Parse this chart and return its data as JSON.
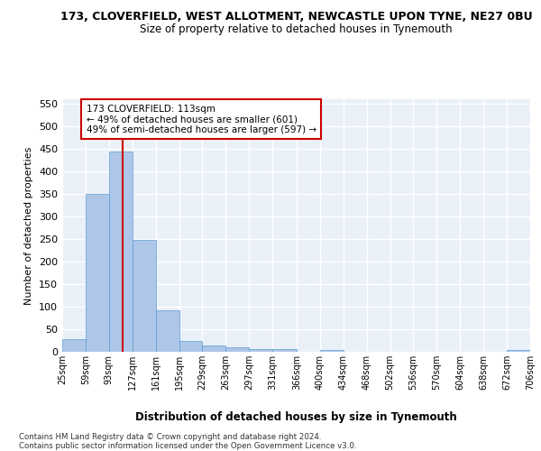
{
  "title": "173, CLOVERFIELD, WEST ALLOTMENT, NEWCASTLE UPON TYNE, NE27 0BU",
  "subtitle": "Size of property relative to detached houses in Tynemouth",
  "xlabel": "Distribution of detached houses by size in Tynemouth",
  "ylabel": "Number of detached properties",
  "bar_color": "#aec6e8",
  "bar_edge_color": "#5a9fd4",
  "bg_color": "#eaf0f8",
  "grid_color": "#ffffff",
  "vline_x": 113,
  "vline_color": "#cc0000",
  "annotation_text": "173 CLOVERFIELD: 113sqm\n← 49% of detached houses are smaller (601)\n49% of semi-detached houses are larger (597) →",
  "footer": "Contains HM Land Registry data © Crown copyright and database right 2024.\nContains public sector information licensed under the Open Government Licence v3.0.",
  "bin_edges": [
    25,
    59,
    93,
    127,
    161,
    195,
    229,
    263,
    297,
    331,
    366,
    400,
    434,
    468,
    502,
    536,
    570,
    604,
    638,
    672,
    706
  ],
  "bar_heights": [
    28,
    350,
    445,
    248,
    92,
    25,
    14,
    11,
    7,
    6,
    0,
    5,
    0,
    0,
    0,
    0,
    0,
    0,
    0,
    5
  ],
  "ylim": [
    0,
    560
  ],
  "yticks": [
    0,
    50,
    100,
    150,
    200,
    250,
    300,
    350,
    400,
    450,
    500,
    550
  ]
}
